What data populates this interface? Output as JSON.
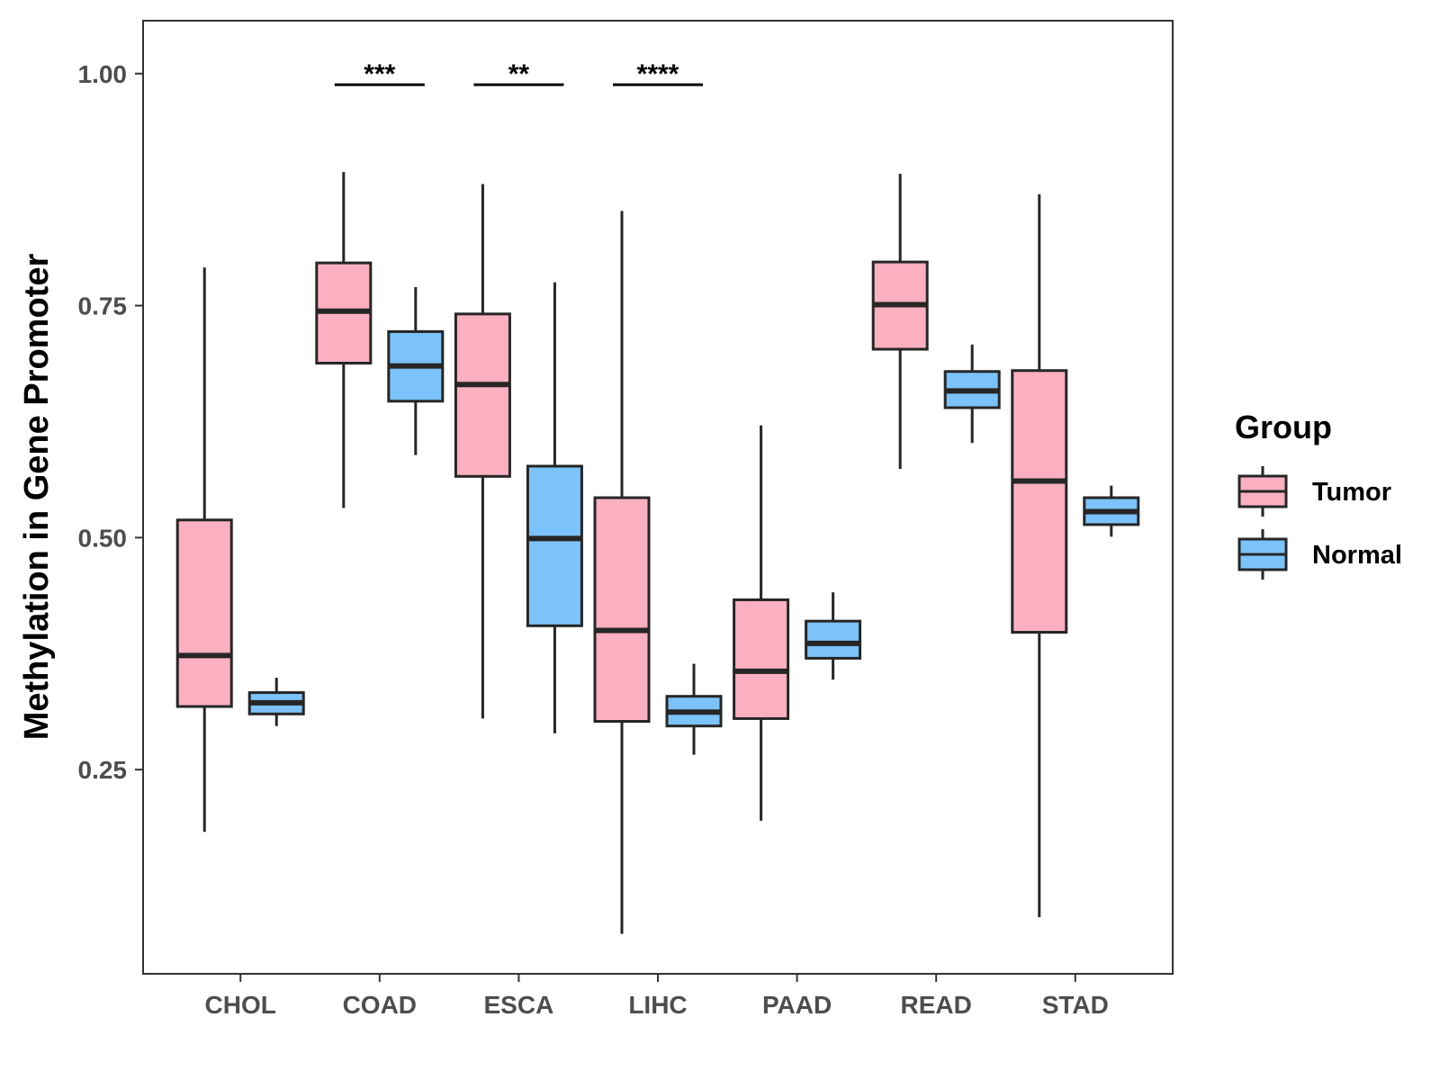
{
  "chart_data": {
    "type": "boxplot",
    "title": "",
    "xlabel": "",
    "ylabel": "Methylation in Gene Promoter",
    "ylim": [
      0.03,
      1.057
    ],
    "yticks": [
      0.25,
      0.5,
      0.75,
      1.0
    ],
    "ytick_labels": [
      "0.25",
      "0.50",
      "0.75",
      "1.00"
    ],
    "grid": false,
    "categories": [
      "CHOL",
      "COAD",
      "ESCA",
      "LIHC",
      "PAAD",
      "READ",
      "STAD"
    ],
    "legend": {
      "title": "Group",
      "position": "right",
      "entries": [
        {
          "name": "Tumor",
          "color": "#fbb0c1"
        },
        {
          "name": "Normal",
          "color": "#7bc3fa"
        }
      ]
    },
    "series": [
      {
        "name": "Tumor",
        "color": "#fbb0c1",
        "boxes": [
          {
            "category": "CHOL",
            "min": 0.183,
            "q1": 0.318,
            "median": 0.373,
            "q3": 0.519,
            "max": 0.791
          },
          {
            "category": "COAD",
            "min": 0.532,
            "q1": 0.688,
            "median": 0.744,
            "q3": 0.796,
            "max": 0.894
          },
          {
            "category": "ESCA",
            "min": 0.305,
            "q1": 0.566,
            "median": 0.665,
            "q3": 0.741,
            "max": 0.881
          },
          {
            "category": "LIHC",
            "min": 0.073,
            "q1": 0.302,
            "median": 0.4,
            "q3": 0.543,
            "max": 0.852
          },
          {
            "category": "PAAD",
            "min": 0.195,
            "q1": 0.305,
            "median": 0.356,
            "q3": 0.433,
            "max": 0.621
          },
          {
            "category": "READ",
            "min": 0.574,
            "q1": 0.703,
            "median": 0.751,
            "q3": 0.797,
            "max": 0.892
          },
          {
            "category": "STAD",
            "min": 0.091,
            "q1": 0.398,
            "median": 0.561,
            "q3": 0.68,
            "max": 0.87
          }
        ]
      },
      {
        "name": "Normal",
        "color": "#7bc3fa",
        "boxes": [
          {
            "category": "CHOL",
            "min": 0.297,
            "q1": 0.31,
            "median": 0.322,
            "q3": 0.333,
            "max": 0.349
          },
          {
            "category": "COAD",
            "min": 0.589,
            "q1": 0.647,
            "median": 0.685,
            "q3": 0.722,
            "max": 0.77
          },
          {
            "category": "ESCA",
            "min": 0.289,
            "q1": 0.405,
            "median": 0.499,
            "q3": 0.577,
            "max": 0.775
          },
          {
            "category": "LIHC",
            "min": 0.266,
            "q1": 0.297,
            "median": 0.312,
            "q3": 0.329,
            "max": 0.364
          },
          {
            "category": "PAAD",
            "min": 0.347,
            "q1": 0.37,
            "median": 0.386,
            "q3": 0.41,
            "max": 0.441
          },
          {
            "category": "READ",
            "min": 0.602,
            "q1": 0.64,
            "median": 0.658,
            "q3": 0.679,
            "max": 0.708
          },
          {
            "category": "STAD",
            "min": 0.501,
            "q1": 0.514,
            "median": 0.528,
            "q3": 0.543,
            "max": 0.556
          }
        ]
      }
    ],
    "annotations": [
      {
        "category": "COAD",
        "label": "***",
        "y": 0.988
      },
      {
        "category": "ESCA",
        "label": "**",
        "y": 0.988
      },
      {
        "category": "LIHC",
        "label": "****",
        "y": 0.988
      }
    ]
  }
}
